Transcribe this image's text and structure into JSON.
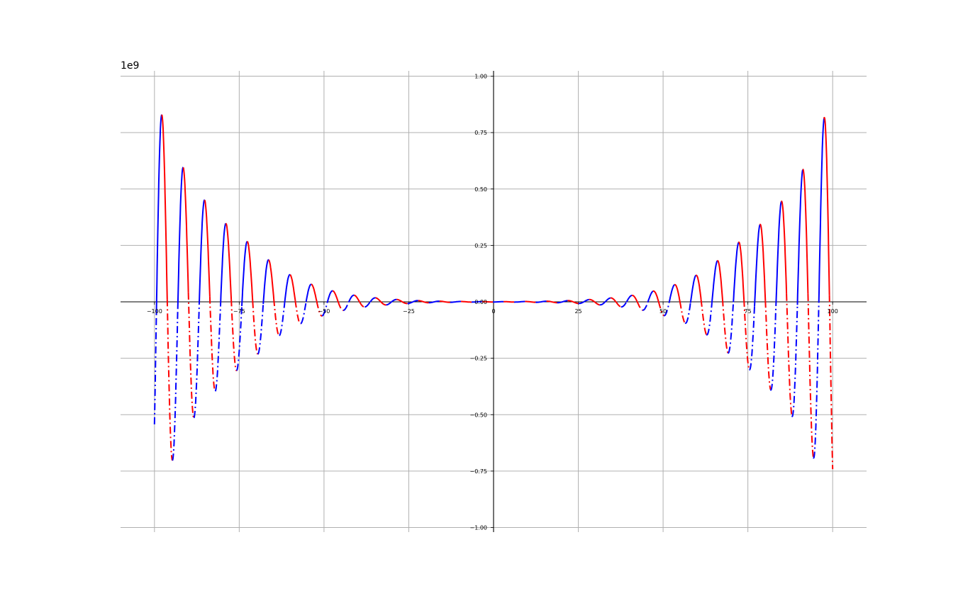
{
  "chart_data": {
    "type": "line",
    "title": "",
    "xlabel": "",
    "ylabel": "",
    "y_offset_label": "1e9",
    "xlim": [
      -110,
      110
    ],
    "ylim": [
      -1.0,
      1.0
    ],
    "grid": true,
    "spines": "centered",
    "x_ticks": [
      -100,
      -75,
      -50,
      -25,
      0,
      25,
      50,
      75,
      100
    ],
    "x_tick_labels": [
      "−100",
      "−75",
      "−50",
      "−25",
      "0",
      "25",
      "50",
      "75",
      "100"
    ],
    "y_ticks": [
      -1.0,
      -0.75,
      -0.5,
      -0.25,
      0.0,
      0.25,
      0.5,
      0.75,
      1.0
    ],
    "y_tick_labels": [
      "−1.00",
      "−0.75",
      "−0.50",
      "−0.25",
      "0.00",
      "0.25",
      "0.50",
      "0.75",
      "1.00"
    ],
    "colors": {
      "blue": "#0000ff",
      "red": "#ff0000"
    },
    "style_note": "solid when y >= 0, dash-dot when y < 0; color alternates red/blue between successive peaks",
    "x_range": [
      -100,
      100
    ],
    "envelope": {
      "type": "exponential",
      "x_abs": [
        30,
        50,
        70,
        90,
        100
      ],
      "amplitude_1e9": [
        0.012,
        0.06,
        0.24,
        0.55,
        0.93
      ]
    },
    "approx_oscillation_period": 6.3,
    "sample_peaks": [
      {
        "x": -97.5,
        "y": 0.93
      },
      {
        "x": -94.5,
        "y": -0.78
      },
      {
        "x": -91.3,
        "y": 0.71
      },
      {
        "x": -88.2,
        "y": -0.59
      },
      {
        "x": -85.0,
        "y": 0.53
      },
      {
        "x": -81.8,
        "y": -0.44
      },
      {
        "x": -78.7,
        "y": 0.39
      },
      {
        "x": -75.5,
        "y": -0.32
      },
      {
        "x": -72.4,
        "y": 0.28
      },
      {
        "x": 72.4,
        "y": 0.27
      },
      {
        "x": 78.7,
        "y": 0.37
      },
      {
        "x": 85.0,
        "y": 0.51
      },
      {
        "x": 91.3,
        "y": 0.68
      },
      {
        "x": 97.5,
        "y": 0.89
      },
      {
        "x": 100.0,
        "y": -0.92
      }
    ]
  }
}
